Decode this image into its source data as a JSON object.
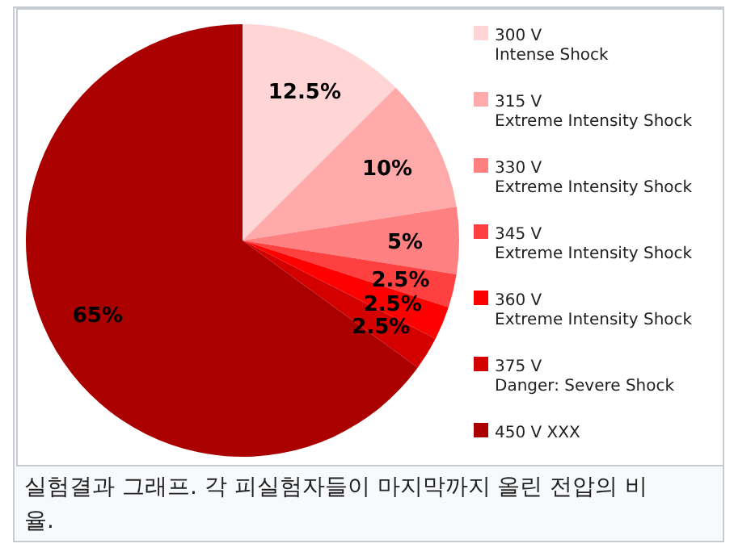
{
  "chart_data": {
    "type": "pie",
    "categories": [
      "300 V\nIntense Shock",
      "315 V\nExtreme Intensity Shock",
      "330 V\nExtreme Intensity Shock",
      "345 V\nExtreme Intensity Shock",
      "360 V\nExtreme Intensity Shock",
      "375 V\nDanger: Severe Shock",
      "450 V XXX"
    ],
    "values": [
      12.5,
      10,
      5,
      2.5,
      2.5,
      2.5,
      65
    ],
    "value_labels": [
      "12.5%",
      "10%",
      "5%",
      "2.5%",
      "2.5%",
      "2.5%",
      "65%"
    ],
    "colors": [
      "#ffd5d5",
      "#ffaaaa",
      "#ff8080",
      "#ff4040",
      "#ff0000",
      "#d40000",
      "#aa0000"
    ],
    "legend": "right",
    "annotations": [
      "실험결과 그래프. 각 피실험자들이 마지막까지 올린 전압의 비율."
    ]
  }
}
